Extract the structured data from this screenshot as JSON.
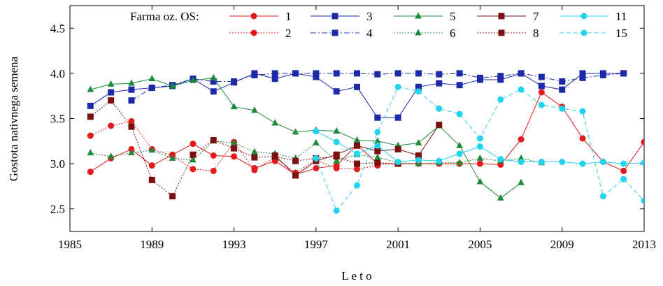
{
  "chart_data": {
    "type": "line",
    "xlabel": "L e t o",
    "ylabel": "Gostota nativnega semena",
    "xlim": [
      1985,
      2013
    ],
    "ylim": [
      2.25,
      4.75
    ],
    "xticks": [
      1985,
      1989,
      1993,
      1997,
      2001,
      2005,
      2009,
      2013
    ],
    "yticks": [
      2.5,
      3.0,
      3.5,
      4.0,
      4.5
    ],
    "ytick_labels": [
      "2.5",
      "3.0",
      "3.5",
      "4.0",
      "4.5"
    ],
    "grid": false,
    "legend": {
      "title": "Farma oz. OS:",
      "placement": "top",
      "columns": 5
    },
    "series": [
      {
        "name": "1",
        "color": "#e31a1c",
        "marker": "circle",
        "dash": "solid",
        "x": [
          1986,
          1987,
          1988,
          1989,
          1990,
          1991,
          1992,
          1993,
          1994,
          1995,
          1996,
          1997,
          1998,
          1999,
          2000,
          2001,
          2002,
          2003,
          2004,
          2005,
          2006,
          2007,
          2008,
          2009,
          2010,
          2011,
          2012,
          2013
        ],
        "y": [
          2.91,
          3.06,
          3.16,
          2.98,
          3.1,
          3.22,
          3.09,
          3.08,
          2.95,
          3.03,
          2.88,
          2.95,
          2.98,
          3.21,
          3.0,
          3.0,
          3.0,
          3.0,
          3.0,
          3.0,
          2.99,
          3.27,
          3.79,
          3.63,
          3.28,
          3.02,
          2.92,
          3.24
        ]
      },
      {
        "name": "2",
        "color": "#e31a1c",
        "marker": "circle",
        "dash": "dotted",
        "x": [
          1986,
          1987,
          1988,
          1989,
          1990,
          1991,
          1992,
          1993,
          1994,
          1995,
          1996,
          1997,
          1998,
          1999,
          2000
        ],
        "y": [
          3.31,
          3.42,
          3.47,
          3.16,
          3.09,
          2.94,
          2.92,
          3.24,
          2.93,
          3.07,
          2.9,
          3.04,
          2.95,
          2.94,
          2.98
        ]
      },
      {
        "name": "3",
        "color": "#1c2aa8",
        "marker": "square",
        "dash": "solid",
        "x": [
          1986,
          1987,
          1988,
          1989,
          1990,
          1991,
          1992,
          1993,
          1994,
          1995,
          1996,
          1997,
          1998,
          1999,
          2000,
          2001,
          2002,
          2003,
          2004,
          2005,
          2006,
          2007,
          2008,
          2009,
          2010,
          2011,
          2012
        ],
        "y": [
          3.64,
          3.79,
          3.82,
          3.84,
          3.86,
          3.94,
          3.8,
          3.9,
          4.0,
          3.94,
          4.0,
          3.96,
          3.8,
          3.85,
          3.51,
          3.51,
          3.85,
          3.89,
          3.87,
          3.93,
          3.93,
          4.0,
          3.86,
          3.82,
          4.0,
          4.0,
          4.0
        ]
      },
      {
        "name": "4",
        "color": "#1c2aa8",
        "marker": "square",
        "dash": "dashdot",
        "x": [
          1988,
          1989,
          1990,
          1991,
          1992,
          1993,
          1994,
          1995,
          1996,
          1997,
          1998,
          1999,
          2000,
          2001,
          2002,
          2003,
          2004,
          2005,
          2006,
          2007,
          2008,
          2009,
          2010,
          2011,
          2012
        ],
        "y": [
          3.7,
          3.84,
          3.87,
          3.94,
          3.91,
          3.91,
          3.98,
          4.0,
          4.0,
          4.0,
          4.0,
          4.0,
          3.99,
          4.0,
          4.0,
          3.99,
          4.0,
          3.95,
          3.97,
          4.0,
          3.96,
          3.91,
          3.95,
          3.98,
          4.0
        ]
      },
      {
        "name": "5",
        "color": "#1f8a3c",
        "marker": "triangle",
        "dash": "solid",
        "x": [
          1986,
          1987,
          1988,
          1989,
          1990,
          1991,
          1992,
          1993,
          1994,
          1995,
          1996,
          1997,
          1998,
          1999,
          2000,
          2001,
          2002,
          2003,
          2004,
          2005,
          2006,
          2007
        ],
        "y": [
          3.82,
          3.88,
          3.89,
          3.94,
          3.86,
          3.92,
          3.95,
          3.63,
          3.59,
          3.45,
          3.35,
          3.37,
          3.36,
          3.26,
          3.25,
          3.2,
          3.23,
          3.42,
          3.2,
          2.8,
          2.62,
          2.79
        ]
      },
      {
        "name": "6",
        "color": "#1f8a3c",
        "marker": "triangle",
        "dash": "dotted",
        "x": [
          1986,
          1987,
          1988,
          1989,
          1990,
          1991,
          1992,
          1993,
          1994,
          1995,
          1996,
          1997,
          1998,
          1999,
          2000,
          2001,
          2002,
          2003,
          2004,
          2005,
          2006,
          2007,
          2008
        ],
        "y": [
          3.12,
          3.08,
          3.12,
          3.15,
          3.06,
          3.04,
          3.25,
          3.23,
          3.13,
          3.11,
          3.06,
          3.23,
          3.03,
          3.1,
          3.07,
          3.01,
          3.0,
          3.01,
          3.01,
          3.06,
          3.03,
          3.06,
          3.01
        ]
      },
      {
        "name": "7",
        "color": "#7a1010",
        "marker": "square",
        "dash": "solid",
        "x": [
          1995,
          1996,
          1997,
          1998,
          1999,
          2000,
          2001,
          2002,
          2003
        ],
        "y": [
          3.09,
          2.87,
          3.03,
          3.1,
          3.2,
          3.14,
          3.16,
          3.09,
          3.43
        ]
      },
      {
        "name": "8",
        "color": "#7a1010",
        "marker": "square",
        "dash": "dotted",
        "x": [
          1986,
          1987,
          1988,
          1989,
          1990,
          1991,
          1992,
          1993,
          1994,
          1995,
          1996,
          1997,
          1998,
          1999,
          2000,
          2001
        ],
        "y": [
          3.52,
          3.7,
          3.41,
          2.82,
          2.64,
          3.1,
          3.26,
          3.17,
          3.07,
          3.08,
          3.03,
          3.06,
          3.08,
          3.0,
          3.01,
          3.0
        ]
      },
      {
        "name": "11",
        "color": "#22d3ee",
        "marker": "circle",
        "dash": "solid",
        "x": [
          1997,
          1998,
          1999,
          2000,
          2001,
          2002,
          2003,
          2004,
          2005,
          2006,
          2007,
          2008,
          2009,
          2010,
          2011,
          2012,
          2013
        ],
        "y": [
          3.36,
          3.24,
          3.11,
          3.2,
          3.02,
          3.04,
          3.03,
          3.11,
          3.19,
          3.05,
          3.02,
          3.02,
          3.02,
          3.0,
          3.02,
          3.0,
          3.01
        ]
      },
      {
        "name": "15",
        "color": "#22d3ee",
        "marker": "circle",
        "dash": "dashed",
        "x": [
          1997,
          1998,
          1999,
          2000,
          2001,
          2002,
          2003,
          2004,
          2005,
          2006,
          2007,
          2008,
          2009,
          2010,
          2011,
          2012,
          2013
        ],
        "y": [
          3.06,
          2.48,
          2.76,
          3.35,
          3.85,
          3.8,
          3.61,
          3.55,
          3.28,
          3.71,
          3.82,
          3.65,
          3.61,
          3.58,
          2.64,
          2.83,
          2.59
        ]
      }
    ]
  }
}
